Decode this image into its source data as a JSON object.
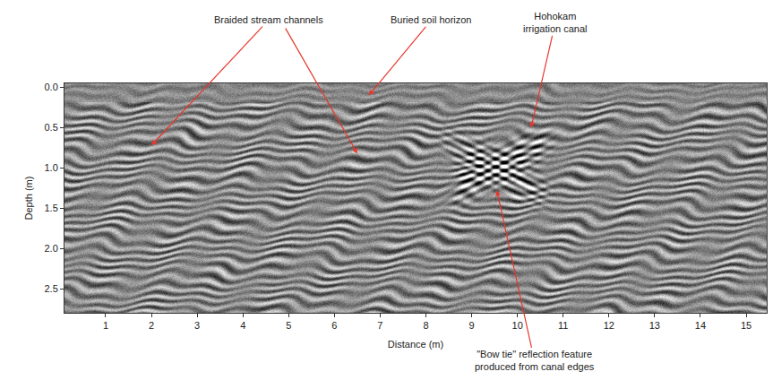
{
  "chart_data": {
    "type": "radargram",
    "xlabel": "Distance (m)",
    "ylabel": "Depth (m)",
    "xlim": [
      0.1,
      15.45
    ],
    "ylim": [
      2.8,
      -0.05
    ],
    "xticks": [
      1,
      2,
      3,
      4,
      5,
      6,
      7,
      8,
      9,
      10,
      11,
      12,
      13,
      14,
      15
    ],
    "yticks": [
      {
        "value": 0,
        "label": "0.0"
      },
      0.5,
      {
        "value": 1,
        "label": "1.0"
      },
      1.5,
      {
        "value": 2,
        "label": "2.0"
      },
      2.5
    ],
    "annotations": [
      {
        "text": "Braided stream channels",
        "points": [
          [
            2.0,
            0.72
          ],
          [
            6.5,
            0.82
          ]
        ]
      },
      {
        "text": "Buried soil horizon",
        "points": [
          [
            6.75,
            0.1
          ]
        ]
      },
      {
        "text": [
          "Hohokam",
          "irrigation canal"
        ],
        "points": [
          [
            10.3,
            0.5
          ]
        ]
      },
      {
        "text": [
          "\"Bow tie\" reflection feature",
          "produced from canal edges"
        ],
        "points": [
          [
            9.55,
            1.28
          ]
        ]
      }
    ]
  }
}
